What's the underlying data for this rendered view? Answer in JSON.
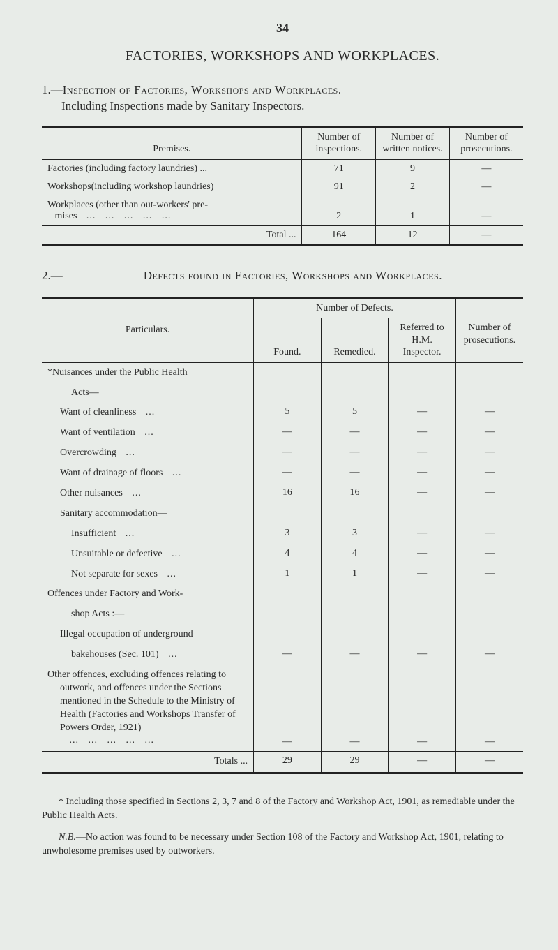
{
  "page_number": "34",
  "main_title": "FACTORIES, WORKSHOPS AND WORKPLACES.",
  "section1": {
    "number": "1.—",
    "sc_text": "Inspection of Factories, Workshops and Workplaces.",
    "subtext": "Including Inspections made by Sanitary Inspectors."
  },
  "table1": {
    "headers": {
      "premises": "Premises.",
      "inspections": "Number of inspec­tions.",
      "written": "Number of written notices.",
      "prosecutions": "Number of prosecu­tions."
    },
    "rows": [
      {
        "label": "Factories (including factory laundries) ...",
        "c1": "71",
        "c2": "9",
        "c3": "—"
      },
      {
        "label": "Workshops(including workshop laundries)",
        "c1": "91",
        "c2": "2",
        "c3": "—"
      },
      {
        "label_prefix": "Workplaces (other than out-workers' pre-",
        "label_line2": "mises",
        "c1": "2",
        "c2": "1",
        "c3": "—"
      }
    ],
    "total": {
      "label": "Total ...",
      "c1": "164",
      "c2": "12",
      "c3": "—"
    }
  },
  "section2": {
    "number": "2.—",
    "sc_text": "Defects found in Factories, Workshops and Workplaces."
  },
  "table2": {
    "group_header": "Number of Defects.",
    "headers": {
      "particulars": "Particulars.",
      "found": "Found.",
      "remedied": "Re­medied.",
      "referred": "Referred to H.M. Inspector.",
      "prosecutions": "Number of prosecu­tions."
    },
    "rows": [
      {
        "label": "*Nuisances under the Public Health",
        "indent": 0,
        "bold": true
      },
      {
        "label": "Acts—",
        "indent": 2
      },
      {
        "label": "Want of cleanliness",
        "indent": 1,
        "dots": true,
        "c1": "5",
        "c2": "5",
        "c3": "—",
        "c4": "—"
      },
      {
        "label": "Want of ventilation",
        "indent": 1,
        "dots": true,
        "c1": "—",
        "c2": "—",
        "c3": "—",
        "c4": "—"
      },
      {
        "label": "Overcrowding",
        "indent": 1,
        "dots": true,
        "c1": "—",
        "c2": "—",
        "c3": "—",
        "c4": "—"
      },
      {
        "label": "Want of drainage of floors",
        "indent": 1,
        "dots": true,
        "c1": "—",
        "c2": "—",
        "c3": "—",
        "c4": "—"
      },
      {
        "label": "Other nuisances",
        "indent": 1,
        "dots": true,
        "c1": "16",
        "c2": "16",
        "c3": "—",
        "c4": "—"
      },
      {
        "label": "Sanitary accommodation—",
        "indent": 1
      },
      {
        "label": "Insufficient",
        "indent": 2,
        "dots": true,
        "c1": "3",
        "c2": "3",
        "c3": "—",
        "c4": "—"
      },
      {
        "label": "Unsuitable or defective",
        "indent": 2,
        "dots": true,
        "c1": "4",
        "c2": "4",
        "c3": "—",
        "c4": "—"
      },
      {
        "label": "Not separate for sexes",
        "indent": 2,
        "dots": true,
        "c1": "1",
        "c2": "1",
        "c3": "—",
        "c4": "—"
      },
      {
        "label": "Offences under Factory and Work-",
        "indent": 0
      },
      {
        "label": "shop Acts :—",
        "indent": 2
      },
      {
        "label": "Illegal occupation of underground",
        "indent": 1
      },
      {
        "label": "bakehouses (Sec. 101)",
        "indent": 2,
        "dots": true,
        "c1": "—",
        "c2": "—",
        "c3": "—",
        "c4": "—"
      },
      {
        "label_block": "Other offences, excluding offences relating to outwork, and offences under the Sections mentioned in the Schedule to the Ministry of Health (Factories and Work­shops Transfer of Powers Order, 1921)",
        "indent": 0,
        "dots": true,
        "c1": "—",
        "c2": "—",
        "c3": "—",
        "c4": "—",
        "valign_bottom": true
      }
    ],
    "total": {
      "label": "Totals ...",
      "c1": "29",
      "c2": "29",
      "c3": "—",
      "c4": "—"
    }
  },
  "footnotes": {
    "f1": "* Including those specified in Sections 2, 3, 7 and 8 of the Factory and Workshop Act, 1901, as remediable under the Public Health Acts.",
    "f2_nb": "N.B.",
    "f2": "—No action was found to be necessary under Section 108 of the Factory and Workshop Act, 1901, relating to unwholesome premises used by outworkers."
  }
}
